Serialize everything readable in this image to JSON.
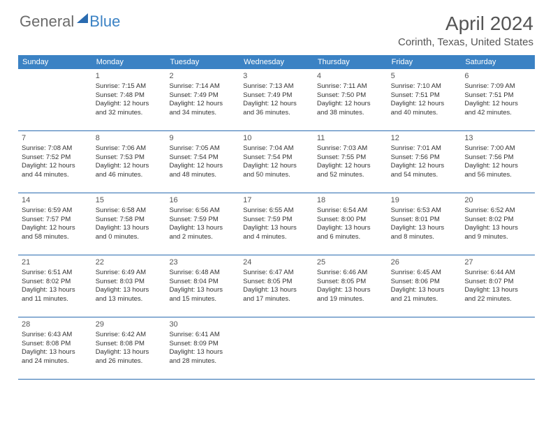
{
  "logo": {
    "part1": "General",
    "part2": "Blue"
  },
  "title": "April 2024",
  "location": "Corinth, Texas, United States",
  "colors": {
    "header_bg": "#3b82c4",
    "header_text": "#ffffff",
    "row_border": "#2a6bb0",
    "text": "#333333",
    "title_text": "#555555"
  },
  "weekdays": [
    "Sunday",
    "Monday",
    "Tuesday",
    "Wednesday",
    "Thursday",
    "Friday",
    "Saturday"
  ],
  "weeks": [
    [
      null,
      {
        "day": "1",
        "sunrise": "Sunrise: 7:15 AM",
        "sunset": "Sunset: 7:48 PM",
        "daylight1": "Daylight: 12 hours",
        "daylight2": "and 32 minutes."
      },
      {
        "day": "2",
        "sunrise": "Sunrise: 7:14 AM",
        "sunset": "Sunset: 7:49 PM",
        "daylight1": "Daylight: 12 hours",
        "daylight2": "and 34 minutes."
      },
      {
        "day": "3",
        "sunrise": "Sunrise: 7:13 AM",
        "sunset": "Sunset: 7:49 PM",
        "daylight1": "Daylight: 12 hours",
        "daylight2": "and 36 minutes."
      },
      {
        "day": "4",
        "sunrise": "Sunrise: 7:11 AM",
        "sunset": "Sunset: 7:50 PM",
        "daylight1": "Daylight: 12 hours",
        "daylight2": "and 38 minutes."
      },
      {
        "day": "5",
        "sunrise": "Sunrise: 7:10 AM",
        "sunset": "Sunset: 7:51 PM",
        "daylight1": "Daylight: 12 hours",
        "daylight2": "and 40 minutes."
      },
      {
        "day": "6",
        "sunrise": "Sunrise: 7:09 AM",
        "sunset": "Sunset: 7:51 PM",
        "daylight1": "Daylight: 12 hours",
        "daylight2": "and 42 minutes."
      }
    ],
    [
      {
        "day": "7",
        "sunrise": "Sunrise: 7:08 AM",
        "sunset": "Sunset: 7:52 PM",
        "daylight1": "Daylight: 12 hours",
        "daylight2": "and 44 minutes."
      },
      {
        "day": "8",
        "sunrise": "Sunrise: 7:06 AM",
        "sunset": "Sunset: 7:53 PM",
        "daylight1": "Daylight: 12 hours",
        "daylight2": "and 46 minutes."
      },
      {
        "day": "9",
        "sunrise": "Sunrise: 7:05 AM",
        "sunset": "Sunset: 7:54 PM",
        "daylight1": "Daylight: 12 hours",
        "daylight2": "and 48 minutes."
      },
      {
        "day": "10",
        "sunrise": "Sunrise: 7:04 AM",
        "sunset": "Sunset: 7:54 PM",
        "daylight1": "Daylight: 12 hours",
        "daylight2": "and 50 minutes."
      },
      {
        "day": "11",
        "sunrise": "Sunrise: 7:03 AM",
        "sunset": "Sunset: 7:55 PM",
        "daylight1": "Daylight: 12 hours",
        "daylight2": "and 52 minutes."
      },
      {
        "day": "12",
        "sunrise": "Sunrise: 7:01 AM",
        "sunset": "Sunset: 7:56 PM",
        "daylight1": "Daylight: 12 hours",
        "daylight2": "and 54 minutes."
      },
      {
        "day": "13",
        "sunrise": "Sunrise: 7:00 AM",
        "sunset": "Sunset: 7:56 PM",
        "daylight1": "Daylight: 12 hours",
        "daylight2": "and 56 minutes."
      }
    ],
    [
      {
        "day": "14",
        "sunrise": "Sunrise: 6:59 AM",
        "sunset": "Sunset: 7:57 PM",
        "daylight1": "Daylight: 12 hours",
        "daylight2": "and 58 minutes."
      },
      {
        "day": "15",
        "sunrise": "Sunrise: 6:58 AM",
        "sunset": "Sunset: 7:58 PM",
        "daylight1": "Daylight: 13 hours",
        "daylight2": "and 0 minutes."
      },
      {
        "day": "16",
        "sunrise": "Sunrise: 6:56 AM",
        "sunset": "Sunset: 7:59 PM",
        "daylight1": "Daylight: 13 hours",
        "daylight2": "and 2 minutes."
      },
      {
        "day": "17",
        "sunrise": "Sunrise: 6:55 AM",
        "sunset": "Sunset: 7:59 PM",
        "daylight1": "Daylight: 13 hours",
        "daylight2": "and 4 minutes."
      },
      {
        "day": "18",
        "sunrise": "Sunrise: 6:54 AM",
        "sunset": "Sunset: 8:00 PM",
        "daylight1": "Daylight: 13 hours",
        "daylight2": "and 6 minutes."
      },
      {
        "day": "19",
        "sunrise": "Sunrise: 6:53 AM",
        "sunset": "Sunset: 8:01 PM",
        "daylight1": "Daylight: 13 hours",
        "daylight2": "and 8 minutes."
      },
      {
        "day": "20",
        "sunrise": "Sunrise: 6:52 AM",
        "sunset": "Sunset: 8:02 PM",
        "daylight1": "Daylight: 13 hours",
        "daylight2": "and 9 minutes."
      }
    ],
    [
      {
        "day": "21",
        "sunrise": "Sunrise: 6:51 AM",
        "sunset": "Sunset: 8:02 PM",
        "daylight1": "Daylight: 13 hours",
        "daylight2": "and 11 minutes."
      },
      {
        "day": "22",
        "sunrise": "Sunrise: 6:49 AM",
        "sunset": "Sunset: 8:03 PM",
        "daylight1": "Daylight: 13 hours",
        "daylight2": "and 13 minutes."
      },
      {
        "day": "23",
        "sunrise": "Sunrise: 6:48 AM",
        "sunset": "Sunset: 8:04 PM",
        "daylight1": "Daylight: 13 hours",
        "daylight2": "and 15 minutes."
      },
      {
        "day": "24",
        "sunrise": "Sunrise: 6:47 AM",
        "sunset": "Sunset: 8:05 PM",
        "daylight1": "Daylight: 13 hours",
        "daylight2": "and 17 minutes."
      },
      {
        "day": "25",
        "sunrise": "Sunrise: 6:46 AM",
        "sunset": "Sunset: 8:05 PM",
        "daylight1": "Daylight: 13 hours",
        "daylight2": "and 19 minutes."
      },
      {
        "day": "26",
        "sunrise": "Sunrise: 6:45 AM",
        "sunset": "Sunset: 8:06 PM",
        "daylight1": "Daylight: 13 hours",
        "daylight2": "and 21 minutes."
      },
      {
        "day": "27",
        "sunrise": "Sunrise: 6:44 AM",
        "sunset": "Sunset: 8:07 PM",
        "daylight1": "Daylight: 13 hours",
        "daylight2": "and 22 minutes."
      }
    ],
    [
      {
        "day": "28",
        "sunrise": "Sunrise: 6:43 AM",
        "sunset": "Sunset: 8:08 PM",
        "daylight1": "Daylight: 13 hours",
        "daylight2": "and 24 minutes."
      },
      {
        "day": "29",
        "sunrise": "Sunrise: 6:42 AM",
        "sunset": "Sunset: 8:08 PM",
        "daylight1": "Daylight: 13 hours",
        "daylight2": "and 26 minutes."
      },
      {
        "day": "30",
        "sunrise": "Sunrise: 6:41 AM",
        "sunset": "Sunset: 8:09 PM",
        "daylight1": "Daylight: 13 hours",
        "daylight2": "and 28 minutes."
      },
      null,
      null,
      null,
      null
    ]
  ]
}
